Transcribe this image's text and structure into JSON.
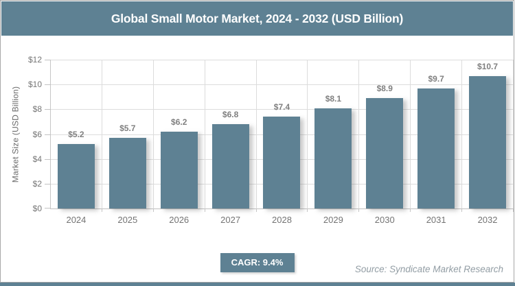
{
  "header": {
    "title": "Global Small Motor Market, 2024 - 2032 (USD Billion)"
  },
  "chart_data": {
    "type": "bar",
    "title": "Global Small Motor Market, 2024 - 2032 (USD Billion)",
    "categories": [
      "2024",
      "2025",
      "2026",
      "2027",
      "2028",
      "2029",
      "2030",
      "2031",
      "2032"
    ],
    "values": [
      5.2,
      5.7,
      6.2,
      6.8,
      7.4,
      8.1,
      8.9,
      9.7,
      10.7
    ],
    "value_labels": [
      "$5.2",
      "$5.7",
      "$6.2",
      "$6.8",
      "$7.4",
      "$8.1",
      "$8.9",
      "$9.7",
      "$10.7"
    ],
    "xlabel": "",
    "ylabel": "Market Size (USD Billion)",
    "ylim": [
      0,
      12
    ],
    "y_ticks": [
      0,
      2,
      4,
      6,
      8,
      10,
      12
    ],
    "y_tick_labels": [
      "$0",
      "$2",
      "$4",
      "$6",
      "$8",
      "$10",
      "$12"
    ],
    "grid": true,
    "legend_position": "none"
  },
  "footer": {
    "cagr_label": "CAGR: 9.4%",
    "source": "Source: Syndicate Market Research"
  },
  "colors": {
    "accent": "#5E8193",
    "gridline": "#DCDCDC",
    "axis_text": "#757575",
    "data_label": "#7F7F7F",
    "source_text": "#929DA4",
    "title_text": "#FFFFFF"
  }
}
